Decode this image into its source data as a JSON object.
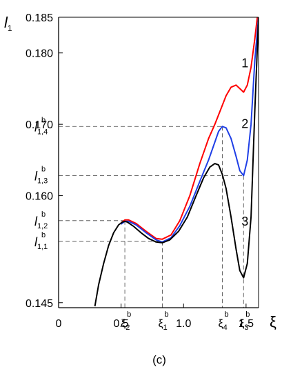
{
  "chart_data": {
    "type": "line",
    "title": "",
    "caption": "(c)",
    "xlabel": "ξ",
    "ylabel": {
      "main": "l",
      "sub": "1"
    },
    "xlim": [
      0,
      1.6
    ],
    "ylim": [
      0.1443,
      0.185
    ],
    "xticks": [
      {
        "value": 0,
        "label": "0"
      },
      {
        "value": 0.5,
        "label": "0.5"
      },
      {
        "value": 1.0,
        "label": "1.0"
      },
      {
        "value": 1.5,
        "label": "1.5"
      }
    ],
    "yticks": [
      {
        "value": 0.145,
        "label": "0.145"
      },
      {
        "value": 0.16,
        "label": "0.160"
      },
      {
        "value": 0.17,
        "label": "0.170"
      },
      {
        "value": 0.18,
        "label": "0.180"
      },
      {
        "value": 0.185,
        "label": "0.185"
      }
    ],
    "x_markers": [
      {
        "value": 0.53,
        "main": "ξ",
        "sup": "b",
        "sub": "2"
      },
      {
        "value": 0.83,
        "main": "ξ",
        "sup": "b",
        "sub": "1"
      },
      {
        "value": 1.31,
        "main": "ξ",
        "sup": "b",
        "sub": "4"
      },
      {
        "value": 1.48,
        "main": "ξ",
        "sup": "b",
        "sub": "3"
      }
    ],
    "y_markers": [
      {
        "value": 0.1697,
        "main": "l",
        "sup": "b",
        "sub": "1,4"
      },
      {
        "value": 0.1628,
        "main": "l",
        "sup": "b",
        "sub": "1,3"
      },
      {
        "value": 0.1565,
        "main": "l",
        "sup": "b",
        "sub": "1,2"
      },
      {
        "value": 0.1536,
        "main": "l",
        "sup": "b",
        "sub": "1,1"
      }
    ],
    "dashed_guides": [
      {
        "x": 0.53,
        "y": 0.1565
      },
      {
        "x": 0.83,
        "y": 0.1536
      },
      {
        "x": 1.31,
        "y": 0.1697
      },
      {
        "x": 1.48,
        "y": 0.1628
      }
    ],
    "series": [
      {
        "name": "1",
        "color": "#ff0000",
        "x": [
          0.5,
          0.53,
          0.56,
          0.62,
          0.7,
          0.78,
          0.83,
          0.9,
          0.97,
          1.05,
          1.13,
          1.2,
          1.25,
          1.3,
          1.34,
          1.38,
          1.42,
          1.45,
          1.48,
          1.51,
          1.54,
          1.57,
          1.59
        ],
        "y": [
          0.1562,
          0.1566,
          0.1566,
          0.1561,
          0.155,
          0.154,
          0.1539,
          0.1545,
          0.1565,
          0.16,
          0.1645,
          0.168,
          0.17,
          0.1722,
          0.174,
          0.1752,
          0.1755,
          0.175,
          0.1745,
          0.1755,
          0.178,
          0.182,
          0.185
        ]
      },
      {
        "name": "2",
        "color": "#1f3fe6",
        "x": [
          0.5,
          0.53,
          0.56,
          0.62,
          0.7,
          0.78,
          0.83,
          0.9,
          0.97,
          1.05,
          1.13,
          1.2,
          1.25,
          1.28,
          1.31,
          1.34,
          1.38,
          1.42,
          1.45,
          1.48,
          1.51,
          1.54,
          1.57,
          1.6
        ],
        "y": [
          0.156,
          0.1564,
          0.1564,
          0.1559,
          0.1548,
          0.1538,
          0.1535,
          0.1541,
          0.1558,
          0.1585,
          0.162,
          0.165,
          0.1675,
          0.169,
          0.1697,
          0.1695,
          0.168,
          0.1655,
          0.1635,
          0.1628,
          0.165,
          0.17,
          0.179,
          0.185
        ]
      },
      {
        "name": "3",
        "color": "#000000",
        "x": [
          0.29,
          0.32,
          0.36,
          0.4,
          0.44,
          0.48,
          0.51,
          0.53,
          0.55,
          0.6,
          0.66,
          0.72,
          0.78,
          0.83,
          0.89,
          0.96,
          1.03,
          1.1,
          1.16,
          1.21,
          1.25,
          1.28,
          1.31,
          1.34,
          1.38,
          1.42,
          1.45,
          1.48,
          1.51,
          1.54,
          1.57,
          1.6
        ],
        "y": [
          0.1445,
          0.1475,
          0.1505,
          0.153,
          0.1548,
          0.1559,
          0.1563,
          0.1564,
          0.1563,
          0.1557,
          0.1548,
          0.154,
          0.1535,
          0.1534,
          0.1538,
          0.155,
          0.157,
          0.16,
          0.1625,
          0.164,
          0.1645,
          0.1643,
          0.163,
          0.161,
          0.157,
          0.1525,
          0.1495,
          0.1485,
          0.1505,
          0.157,
          0.172,
          0.185
        ]
      }
    ]
  }
}
